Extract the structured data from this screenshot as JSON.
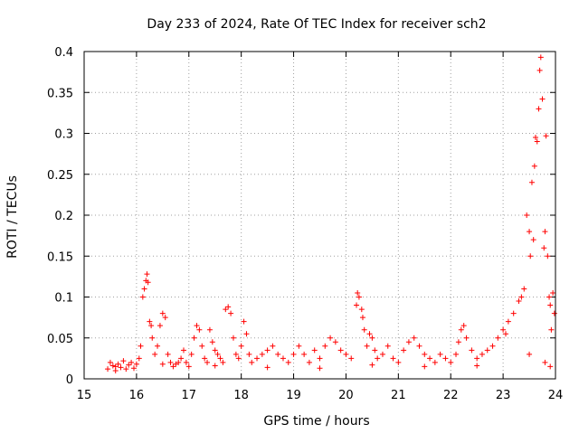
{
  "chart_data": {
    "type": "scatter",
    "title": "Day 233 of 2024, Rate Of TEC Index for receiver sch2",
    "xlabel": "GPS time / hours",
    "ylabel": "ROTI / TECUs",
    "xlim": [
      15,
      24
    ],
    "ylim": [
      0,
      0.4
    ],
    "x_ticks": [
      "15",
      "16",
      "17",
      "18",
      "19",
      "20",
      "21",
      "22",
      "23",
      "24"
    ],
    "y_ticks": [
      "0",
      "0.05",
      "0.1",
      "0.15",
      "0.2",
      "0.25",
      "0.3",
      "0.35",
      "0.4"
    ],
    "grid": true,
    "marker": "+",
    "color": "#ff0000",
    "series": [
      {
        "points": [
          [
            15.45,
            0.012
          ],
          [
            15.5,
            0.02
          ],
          [
            15.55,
            0.016
          ],
          [
            15.6,
            0.01
          ],
          [
            15.65,
            0.018
          ],
          [
            15.7,
            0.014
          ],
          [
            15.75,
            0.022
          ],
          [
            15.8,
            0.012
          ],
          [
            15.85,
            0.017
          ],
          [
            15.9,
            0.02
          ],
          [
            15.95,
            0.013
          ],
          [
            16.0,
            0.018
          ],
          [
            16.05,
            0.025
          ],
          [
            16.08,
            0.04
          ],
          [
            16.12,
            0.1
          ],
          [
            16.15,
            0.11
          ],
          [
            16.18,
            0.12
          ],
          [
            16.2,
            0.128
          ],
          [
            16.22,
            0.118
          ],
          [
            16.25,
            0.07
          ],
          [
            16.28,
            0.065
          ],
          [
            16.3,
            0.05
          ],
          [
            16.35,
            0.03
          ],
          [
            16.4,
            0.04
          ],
          [
            16.45,
            0.065
          ],
          [
            16.5,
            0.08
          ],
          [
            16.55,
            0.075
          ],
          [
            16.6,
            0.03
          ],
          [
            16.65,
            0.02
          ],
          [
            16.7,
            0.015
          ],
          [
            16.75,
            0.018
          ],
          [
            16.8,
            0.02
          ],
          [
            16.85,
            0.025
          ],
          [
            16.9,
            0.035
          ],
          [
            16.95,
            0.02
          ],
          [
            17.0,
            0.015
          ],
          [
            17.05,
            0.03
          ],
          [
            17.1,
            0.05
          ],
          [
            17.15,
            0.065
          ],
          [
            17.2,
            0.06
          ],
          [
            17.25,
            0.04
          ],
          [
            17.3,
            0.025
          ],
          [
            17.35,
            0.02
          ],
          [
            17.4,
            0.06
          ],
          [
            17.45,
            0.045
          ],
          [
            17.5,
            0.035
          ],
          [
            17.55,
            0.03
          ],
          [
            17.6,
            0.025
          ],
          [
            17.65,
            0.02
          ],
          [
            17.7,
            0.085
          ],
          [
            17.75,
            0.088
          ],
          [
            17.8,
            0.08
          ],
          [
            17.85,
            0.05
          ],
          [
            17.9,
            0.03
          ],
          [
            17.95,
            0.025
          ],
          [
            18.0,
            0.04
          ],
          [
            18.05,
            0.07
          ],
          [
            18.1,
            0.055
          ],
          [
            18.15,
            0.03
          ],
          [
            18.2,
            0.02
          ],
          [
            18.3,
            0.025
          ],
          [
            18.4,
            0.03
          ],
          [
            18.5,
            0.035
          ],
          [
            18.6,
            0.04
          ],
          [
            18.7,
            0.03
          ],
          [
            18.8,
            0.025
          ],
          [
            18.9,
            0.02
          ],
          [
            19.0,
            0.03
          ],
          [
            19.1,
            0.04
          ],
          [
            19.2,
            0.03
          ],
          [
            19.3,
            0.02
          ],
          [
            19.4,
            0.035
          ],
          [
            19.5,
            0.025
          ],
          [
            19.6,
            0.04
          ],
          [
            19.7,
            0.05
          ],
          [
            19.8,
            0.045
          ],
          [
            19.9,
            0.035
          ],
          [
            20.0,
            0.03
          ],
          [
            20.1,
            0.025
          ],
          [
            20.2,
            0.09
          ],
          [
            20.22,
            0.105
          ],
          [
            20.25,
            0.1
          ],
          [
            20.3,
            0.085
          ],
          [
            20.32,
            0.075
          ],
          [
            20.35,
            0.06
          ],
          [
            20.4,
            0.04
          ],
          [
            20.45,
            0.055
          ],
          [
            20.5,
            0.05
          ],
          [
            20.55,
            0.035
          ],
          [
            20.6,
            0.025
          ],
          [
            20.7,
            0.03
          ],
          [
            20.8,
            0.04
          ],
          [
            20.9,
            0.025
          ],
          [
            21.0,
            0.02
          ],
          [
            21.1,
            0.035
          ],
          [
            21.2,
            0.045
          ],
          [
            21.3,
            0.05
          ],
          [
            21.4,
            0.04
          ],
          [
            21.5,
            0.03
          ],
          [
            21.6,
            0.025
          ],
          [
            21.7,
            0.02
          ],
          [
            21.8,
            0.03
          ],
          [
            21.9,
            0.025
          ],
          [
            22.0,
            0.02
          ],
          [
            22.1,
            0.03
          ],
          [
            22.15,
            0.045
          ],
          [
            22.2,
            0.06
          ],
          [
            22.25,
            0.065
          ],
          [
            22.3,
            0.05
          ],
          [
            22.4,
            0.035
          ],
          [
            22.5,
            0.025
          ],
          [
            22.6,
            0.03
          ],
          [
            22.7,
            0.035
          ],
          [
            22.8,
            0.04
          ],
          [
            22.9,
            0.05
          ],
          [
            23.0,
            0.06
          ],
          [
            23.05,
            0.055
          ],
          [
            23.1,
            0.07
          ],
          [
            23.2,
            0.08
          ],
          [
            23.3,
            0.095
          ],
          [
            23.35,
            0.1
          ],
          [
            23.4,
            0.11
          ],
          [
            23.45,
            0.2
          ],
          [
            23.5,
            0.18
          ],
          [
            23.52,
            0.15
          ],
          [
            23.55,
            0.24
          ],
          [
            23.58,
            0.17
          ],
          [
            23.6,
            0.26
          ],
          [
            23.62,
            0.295
          ],
          [
            23.65,
            0.29
          ],
          [
            23.68,
            0.33
          ],
          [
            23.7,
            0.377
          ],
          [
            23.72,
            0.393
          ],
          [
            23.75,
            0.342
          ],
          [
            23.78,
            0.16
          ],
          [
            23.8,
            0.18
          ],
          [
            23.82,
            0.297
          ],
          [
            23.85,
            0.15
          ],
          [
            23.88,
            0.1
          ],
          [
            23.9,
            0.09
          ],
          [
            23.92,
            0.06
          ],
          [
            23.95,
            0.105
          ],
          [
            23.98,
            0.08
          ],
          [
            15.6,
            0.015
          ],
          [
            16.5,
            0.018
          ],
          [
            17.5,
            0.016
          ],
          [
            18.5,
            0.014
          ],
          [
            19.5,
            0.013
          ],
          [
            20.5,
            0.017
          ],
          [
            21.5,
            0.015
          ],
          [
            22.5,
            0.016
          ],
          [
            23.5,
            0.03
          ],
          [
            23.8,
            0.02
          ],
          [
            23.9,
            0.015
          ]
        ]
      }
    ]
  }
}
